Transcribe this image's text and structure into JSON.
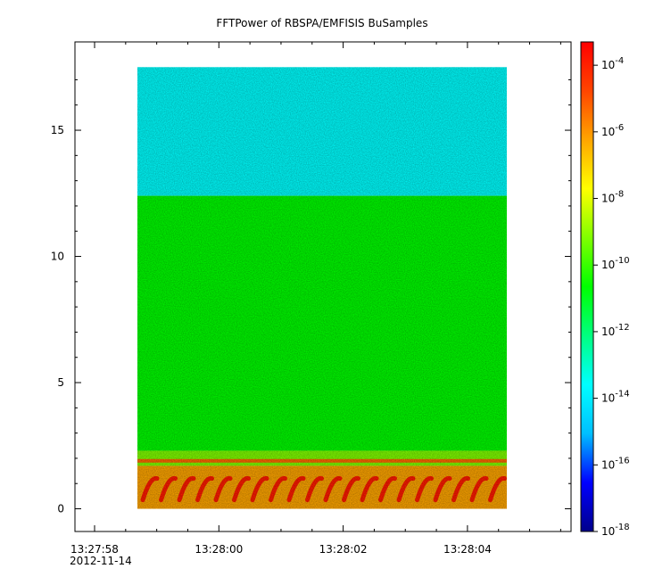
{
  "chart_data": {
    "type": "heatmap",
    "title": "FFTPower of RBSPA/EMFISIS  BuSamples",
    "xlabel": "",
    "ylabel": "",
    "x_tick_labels": [
      "13:27:58",
      "13:28:00",
      "13:28:02",
      "13:28:04"
    ],
    "x_date_label": "2012-11-14",
    "y_ticks": [
      0,
      5,
      10,
      15
    ],
    "ylim": [
      -0.9,
      18.5
    ],
    "data_extent_y": [
      0,
      17.5
    ],
    "colorbar": {
      "scale": "log",
      "range": [
        -18,
        -3.3
      ],
      "tick_exponents": [
        -4,
        -6,
        -8,
        -10,
        -12,
        -14,
        -16,
        -18
      ],
      "tick_base": "10",
      "colors": [
        "#00008b",
        "#0000ff",
        "#00bfff",
        "#00ffff",
        "#00ff80",
        "#00ff00",
        "#80ff00",
        "#ffff00",
        "#ffa500",
        "#ff4500",
        "#ff0000"
      ]
    },
    "bands": [
      {
        "from": 12.4,
        "to": 17.5,
        "log_power": -13.0
      },
      {
        "from": 2.3,
        "to": 12.4,
        "log_power": -11.0
      },
      {
        "from": 1.7,
        "to": 2.3,
        "log_power": -8.5
      },
      {
        "from": 0.0,
        "to": 1.7,
        "log_power": -6.5
      }
    ],
    "grid": false
  }
}
